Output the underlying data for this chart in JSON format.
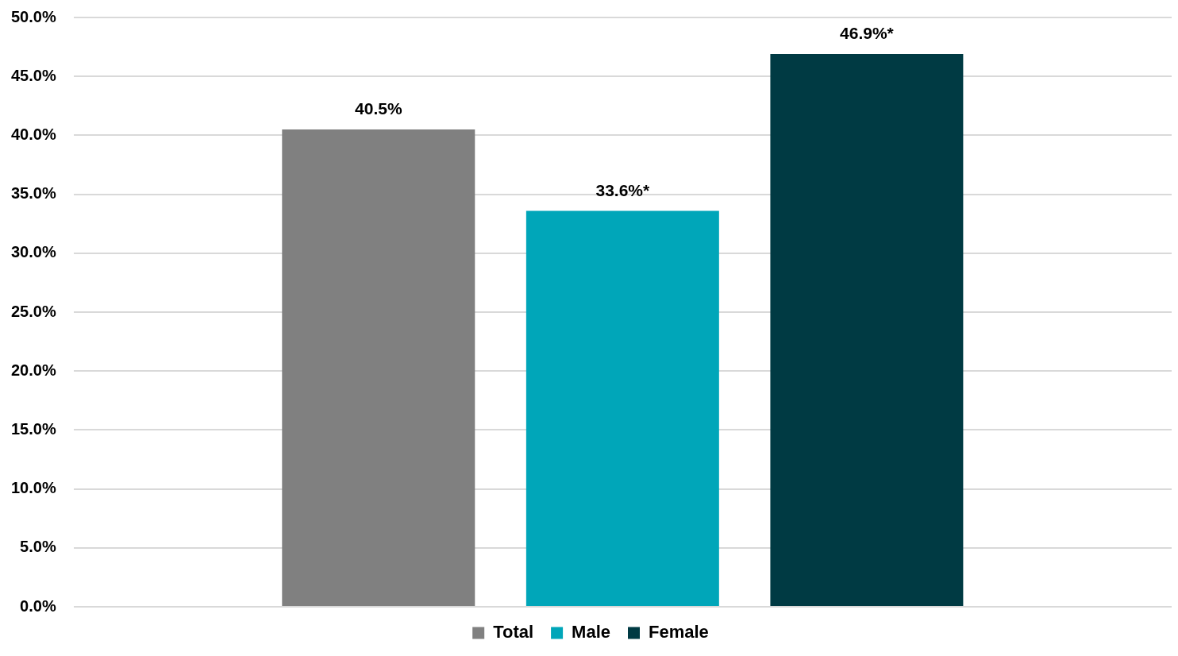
{
  "chart_data": {
    "type": "bar",
    "categories": [
      null
    ],
    "series": [
      {
        "name": "Total",
        "color": "#808080",
        "values": [
          40.5
        ],
        "value_labels": [
          "40.5%"
        ]
      },
      {
        "name": "Male",
        "color": "#00a6b9",
        "values": [
          33.6
        ],
        "value_labels": [
          "33.6%*"
        ]
      },
      {
        "name": "Female",
        "color": "#003a43",
        "values": [
          46.9
        ],
        "value_labels": [
          "46.9%*"
        ]
      }
    ],
    "ylim": [
      0,
      50
    ],
    "yticks": [
      {
        "value": 0,
        "label": "0.0%"
      },
      {
        "value": 5,
        "label": "5.0%"
      },
      {
        "value": 10,
        "label": "10.0%"
      },
      {
        "value": 15,
        "label": "15.0%"
      },
      {
        "value": 20,
        "label": "20.0%"
      },
      {
        "value": 25,
        "label": "25.0%"
      },
      {
        "value": 30,
        "label": "30.0%"
      },
      {
        "value": 35,
        "label": "35.0%"
      },
      {
        "value": 40,
        "label": "40.0%"
      },
      {
        "value": 45,
        "label": "45.0%"
      },
      {
        "value": 50,
        "label": "50.0%"
      }
    ],
    "grid": "y",
    "legend": "bottom"
  }
}
